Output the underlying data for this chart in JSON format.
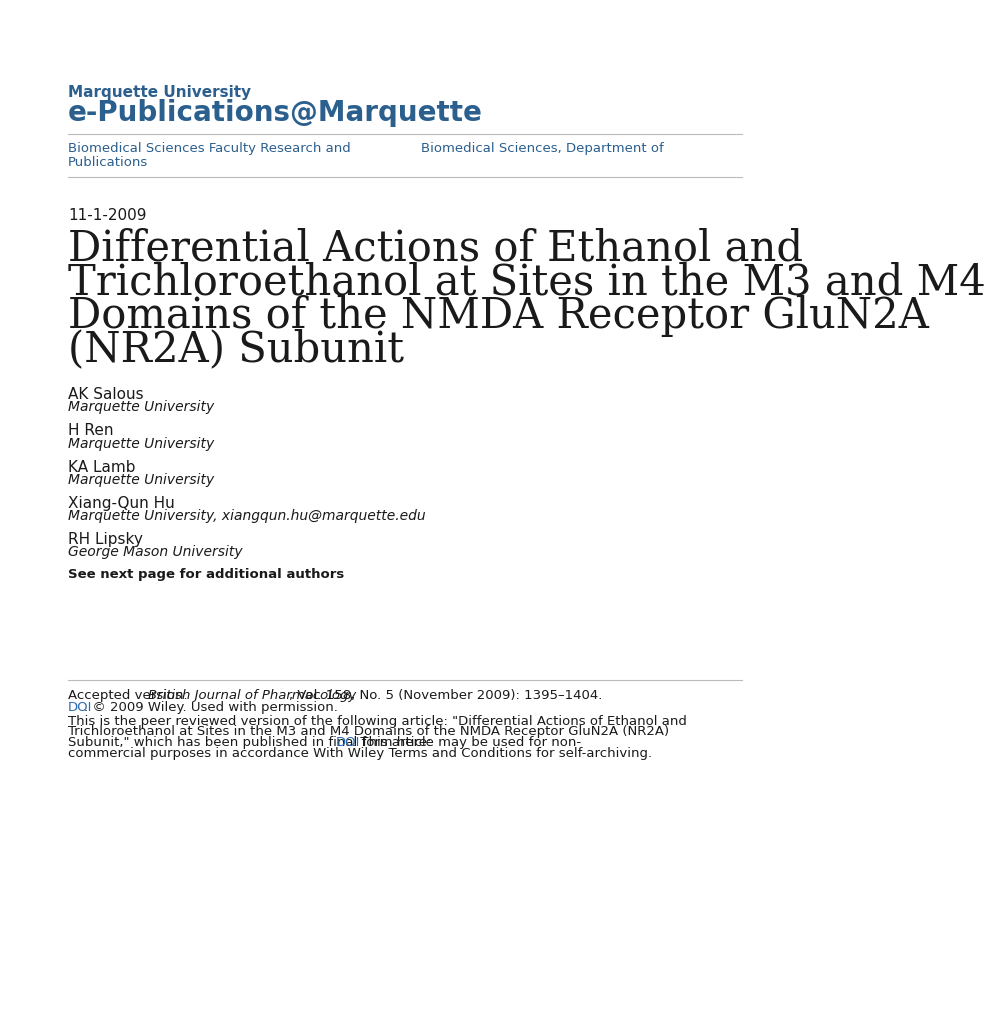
{
  "bg_color": "#ffffff",
  "header_uni_text": "Marquette University",
  "header_epub_text": "e-Publications@Marquette",
  "header_color": "#2B5F8E",
  "nav_left_line1": "Biomedical Sciences Faculty Research and",
  "nav_left_line2": "Publications",
  "nav_right": "Biomedical Sciences, Department of",
  "nav_color": "#2B5F8E",
  "date": "11-1-2009",
  "title_line1": "Differential Actions of Ethanol and",
  "title_line2": "Trichloroethanol at Sites in the M3 and M4",
  "title_line3": "Domains of the NMDA Receptor GluN2A",
  "title_line4": "(NR2A) Subunit",
  "authors": [
    {
      "name": "AK Salous",
      "affil": "Marquette University",
      "extra": ""
    },
    {
      "name": "H Ren",
      "affil": "Marquette University",
      "extra": ""
    },
    {
      "name": "KA Lamb",
      "affil": "Marquette University",
      "extra": ""
    },
    {
      "name": "Xiang-Qun Hu",
      "affil": "Marquette University",
      "extra": ", xiangqun.hu@marquette.edu"
    },
    {
      "name": "RH Lipsky",
      "affil": "George Mason University",
      "extra": ""
    }
  ],
  "see_next": "See next page for additional authors",
  "link_color": "#2B6CB0",
  "text_color": "#1a1a1a",
  "title_color": "#1a1a1a",
  "divider_color": "#BBBBBB",
  "header_uni_size": 11,
  "header_epub_size": 20,
  "nav_size": 9.5,
  "date_size": 11,
  "title_size": 30,
  "author_name_size": 11,
  "author_affil_size": 10,
  "see_next_size": 9.5,
  "footer_size": 9.5
}
